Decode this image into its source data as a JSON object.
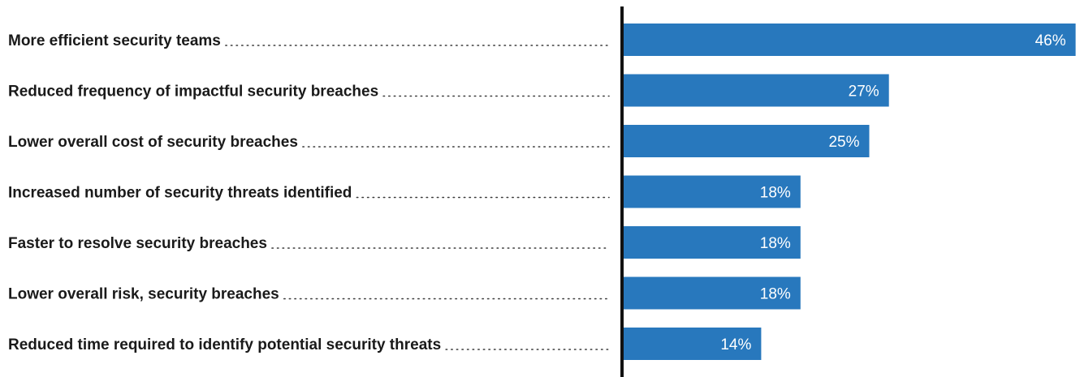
{
  "chart_data": {
    "type": "bar",
    "orientation": "horizontal",
    "categories": [
      "More efficient security teams",
      "Reduced frequency of impactful security breaches",
      "Lower overall cost of security breaches",
      "Increased number of security threats identified",
      "Faster to resolve security breaches",
      "Lower overall risk, security breaches",
      "Reduced time required to identify potential security threats"
    ],
    "values": [
      46,
      27,
      25,
      18,
      18,
      18,
      14
    ],
    "value_labels": [
      "46%",
      "27%",
      "25%",
      "18%",
      "18%",
      "18%",
      "14%"
    ],
    "value_unit": "%",
    "xlim": [
      0,
      50
    ],
    "grid": false,
    "legend": "none",
    "title": "",
    "xlabel": "",
    "ylabel": ""
  },
  "colors": {
    "bar": "#2878bd",
    "value_text": "#ffffff",
    "category_text": "#1a1a1a",
    "axis": "#111111"
  }
}
